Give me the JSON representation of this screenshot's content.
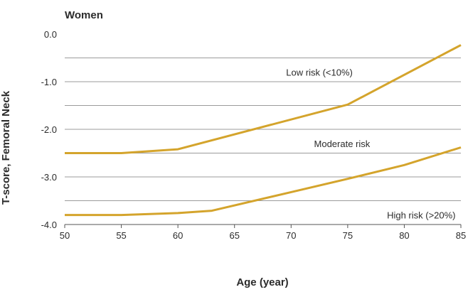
{
  "chart_data": {
    "type": "line",
    "title": "Women",
    "xlabel": "Age (year)",
    "ylabel": "T-score, Femoral Neck",
    "xlim": [
      50,
      85
    ],
    "ylim": [
      -4.0,
      0.0
    ],
    "x_ticks": [
      50,
      55,
      60,
      65,
      70,
      75,
      80,
      85
    ],
    "y_ticks": [
      {
        "value": 0.0,
        "label": "0.0"
      },
      {
        "value": -1.0,
        "label": "-1.0"
      },
      {
        "value": -2.0,
        "label": "-2.0"
      },
      {
        "value": -3.0,
        "label": "-3.0"
      },
      {
        "value": -4.0,
        "label": "-4.0"
      }
    ],
    "gridlines": [
      -0.5,
      -1.0,
      -1.5,
      -2.0,
      -2.5,
      -3.0,
      -3.5
    ],
    "grid": true,
    "legend": false,
    "line_color": "#d4a42c",
    "series": [
      {
        "x": [
          50,
          55,
          60,
          75,
          85
        ],
        "y": [
          -2.5,
          -2.5,
          -2.42,
          -1.48,
          -0.23
        ]
      },
      {
        "x": [
          50,
          55,
          60,
          63,
          70,
          75,
          80,
          85
        ],
        "y": [
          -3.8,
          -3.8,
          -3.76,
          -3.71,
          -3.32,
          -3.04,
          -2.75,
          -2.38
        ]
      }
    ],
    "annotations": [
      {
        "text": "Low risk (<10%)",
        "x": 72.5,
        "y": -0.8
      },
      {
        "text": "Moderate risk",
        "x": 74.5,
        "y": -2.3
      },
      {
        "text": "High risk (>20%)",
        "x": 81.5,
        "y": -3.8
      }
    ]
  }
}
